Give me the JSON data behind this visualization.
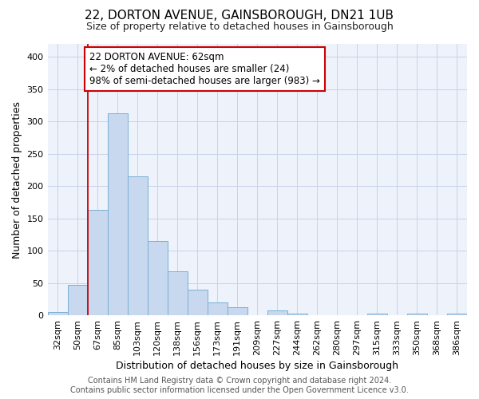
{
  "title": "22, DORTON AVENUE, GAINSBOROUGH, DN21 1UB",
  "subtitle": "Size of property relative to detached houses in Gainsborough",
  "xlabel": "Distribution of detached houses by size in Gainsborough",
  "ylabel": "Number of detached properties",
  "bar_color": "#c8d8ef",
  "bar_edge_color": "#7aafd4",
  "categories": [
    "32sqm",
    "50sqm",
    "67sqm",
    "85sqm",
    "103sqm",
    "120sqm",
    "138sqm",
    "156sqm",
    "173sqm",
    "191sqm",
    "209sqm",
    "227sqm",
    "244sqm",
    "262sqm",
    "280sqm",
    "297sqm",
    "315sqm",
    "333sqm",
    "350sqm",
    "368sqm",
    "386sqm"
  ],
  "values": [
    5,
    47,
    163,
    312,
    215,
    115,
    68,
    39,
    20,
    13,
    0,
    7,
    3,
    0,
    0,
    0,
    3,
    0,
    3,
    0,
    3
  ],
  "annotation_box_text": "22 DORTON AVENUE: 62sqm\n← 2% of detached houses are smaller (24)\n98% of semi-detached houses are larger (983) →",
  "ylim": [
    0,
    420
  ],
  "yticks": [
    0,
    50,
    100,
    150,
    200,
    250,
    300,
    350,
    400
  ],
  "grid_color": "#c8d4e8",
  "background_color": "#edf2fb",
  "footer_text": "Contains HM Land Registry data © Crown copyright and database right 2024.\nContains public sector information licensed under the Open Government Licence v3.0.",
  "annotation_box_color": "#ffffff",
  "annotation_box_edge_color": "#cc0000",
  "vline_color": "#cc0000",
  "vline_x": 2,
  "title_fontsize": 11,
  "subtitle_fontsize": 9,
  "ylabel_fontsize": 9,
  "xlabel_fontsize": 9,
  "tick_fontsize": 8,
  "footer_fontsize": 7
}
